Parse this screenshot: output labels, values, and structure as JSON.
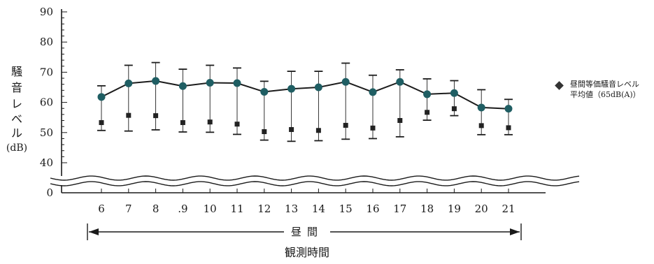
{
  "chart_data": {
    "type": "line",
    "ylabel": "騒音レベル(dB)",
    "ylabel_lines": [
      "騒",
      "音",
      "レ",
      "ベ",
      "ル",
      "(dB)"
    ],
    "xlabel": "観測時間",
    "period_label": "昼間",
    "y_ticks": [
      0,
      40,
      50,
      60,
      70,
      80,
      90
    ],
    "ylim": [
      40,
      90
    ],
    "axis_break": true,
    "grid": false,
    "legend": {
      "position": "right",
      "lines": [
        "昼間等価騒音レベル",
        "平均値（65dB(A)）"
      ]
    },
    "categories": [
      "6",
      "7",
      "8",
      ".9",
      "10",
      "11",
      "12",
      "13",
      "14",
      "15",
      "16",
      "17",
      "18",
      "19",
      "20",
      "21"
    ],
    "series": [
      {
        "name": "昼間等価騒音レベル平均値（65dB(A)）",
        "marker": "circle",
        "values": [
          61.8,
          66.3,
          67.1,
          65.4,
          66.5,
          66.4,
          63.5,
          64.5,
          65.0,
          66.8,
          63.4,
          66.8,
          62.7,
          63.1,
          58.3,
          57.9
        ]
      },
      {
        "name": "",
        "marker": "square",
        "values": [
          53.3,
          55.7,
          55.6,
          53.3,
          53.5,
          52.8,
          50.3,
          51.0,
          50.7,
          52.4,
          51.5,
          54.0,
          56.7,
          57.9,
          52.3,
          51.6
        ]
      }
    ],
    "error_bars": {
      "upper": [
        65.5,
        72.3,
        73.2,
        71.0,
        72.3,
        71.4,
        67.0,
        70.3,
        70.3,
        73.0,
        69.0,
        70.8,
        67.8,
        67.2,
        64.2,
        61.0
      ],
      "lower": [
        50.7,
        50.5,
        50.9,
        50.2,
        50.1,
        49.4,
        47.5,
        47.1,
        47.3,
        47.8,
        48.0,
        48.6,
        54.1,
        55.6,
        49.3,
        49.3
      ]
    },
    "colors": {
      "line": "#1c1c1c",
      "circle_marker": "#1f5e63",
      "square_marker": "#222222",
      "axis": "#1a1a1a",
      "legend_diamond": "#333333"
    }
  }
}
